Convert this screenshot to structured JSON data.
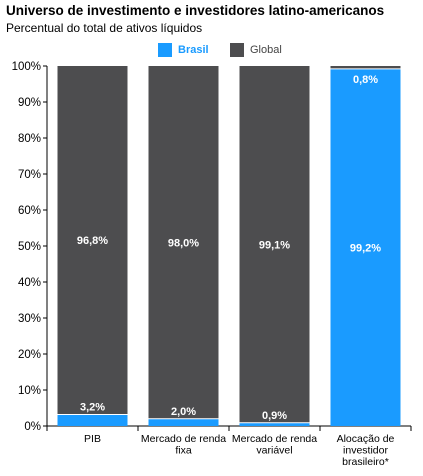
{
  "chart_data": {
    "type": "bar",
    "stacked": true,
    "title": "Universo de investimento e investidores latino-americanos",
    "subtitle": "Percentual do total de ativos líquidos",
    "categories": [
      [
        "PIB"
      ],
      [
        "Mercado de renda",
        "fixa"
      ],
      [
        "Mercado de renda",
        "variável"
      ],
      [
        "Alocação de",
        "investidor",
        "brasileiro*"
      ]
    ],
    "series": [
      {
        "name": "Brasil",
        "color": "#1a9bff",
        "values": [
          3.2,
          2.0,
          0.9,
          99.2
        ],
        "labels": [
          "3,2%",
          "2,0%",
          "0,9%",
          "99,2%"
        ]
      },
      {
        "name": "Global",
        "color": "#4d4d4f",
        "values": [
          96.8,
          98.0,
          99.1,
          0.8
        ],
        "labels": [
          "96,8%",
          "98,0%",
          "99,1%",
          "0,8%"
        ]
      }
    ],
    "ylim": [
      0,
      100
    ],
    "yticks": [
      "0%",
      "10%",
      "20%",
      "30%",
      "40%",
      "50%",
      "60%",
      "70%",
      "80%",
      "90%",
      "100%"
    ],
    "grid": false,
    "legend_position": "top"
  }
}
